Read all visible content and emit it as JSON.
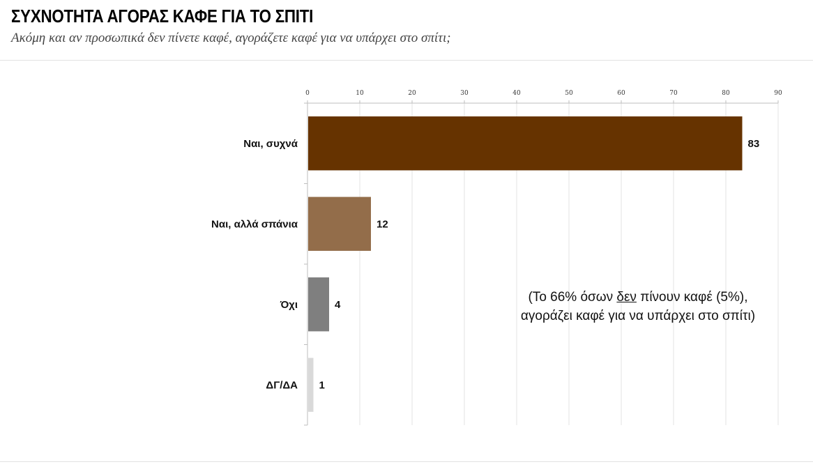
{
  "header": {
    "title": "ΣΥΧΝΟΤΗΤΑ ΑΓΟΡΑΣ ΚΑΦΕ ΓΙΑ ΤΟ ΣΠΙΤΙ",
    "subtitle": "Ακόμη και αν προσωπικά δεν πίνετε καφέ, αγοράζετε καφέ για να υπάρχει στο σπίτι;"
  },
  "annotation": {
    "line1_before": "(Το 66% όσων ",
    "line1_underlined": "δεν",
    "line1_after": " πίνουν καφέ (5%),",
    "line2": "αγοράζει καφέ για να υπάρχει στο σπίτι)"
  },
  "chart_data": {
    "type": "bar",
    "orientation": "horizontal",
    "categories": [
      "Ναι, συχνά",
      "Ναι, αλλά σπάνια",
      "Όχι",
      "ΔΓ/ΔΑ"
    ],
    "values": [
      83,
      12,
      4,
      1
    ],
    "colors": [
      "#663300",
      "#936D4A",
      "#7F7F7F",
      "#D9D9D9"
    ],
    "xlim": [
      0,
      90
    ],
    "xticks": [
      0,
      10,
      20,
      30,
      40,
      50,
      60,
      70,
      80,
      90
    ],
    "xaxis_position": "top",
    "grid": true,
    "legend": "none"
  }
}
